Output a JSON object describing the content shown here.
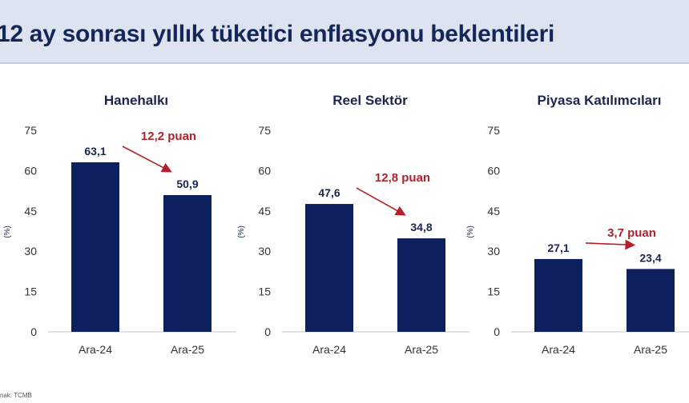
{
  "title": "12 ay sonrası yıllık tüketici enflasyonu beklentileri",
  "source": "nak: TCMB",
  "colors": {
    "bar": "#0d1f5c",
    "annotation": "#b3202a",
    "text": "#1a2550",
    "axis": "#595959"
  },
  "chart_data": [
    {
      "type": "bar",
      "title": "Hanehalkı",
      "ylabel": "(%)",
      "categories": [
        "Ara-24",
        "Ara-25"
      ],
      "values": [
        63.1,
        50.9
      ],
      "data_labels": [
        "63,1",
        "50,9"
      ],
      "ylim": [
        0,
        75
      ],
      "yticks": [
        "0",
        "15",
        "30",
        "45",
        "60",
        "75"
      ],
      "annotation": "12,2 puan",
      "grid": false
    },
    {
      "type": "bar",
      "title": "Reel Sektör",
      "ylabel": "(%)",
      "categories": [
        "Ara-24",
        "Ara-25"
      ],
      "values": [
        47.6,
        34.8
      ],
      "data_labels": [
        "47,6",
        "34,8"
      ],
      "ylim": [
        0,
        75
      ],
      "yticks": [
        "0",
        "15",
        "30",
        "45",
        "60",
        "75"
      ],
      "annotation": "12,8 puan",
      "grid": false
    },
    {
      "type": "bar",
      "title": "Piyasa Katılımcıları",
      "ylabel": "(%)",
      "categories": [
        "Ara-24",
        "Ara-25"
      ],
      "values": [
        27.1,
        23.4
      ],
      "data_labels": [
        "27,1",
        "23,4"
      ],
      "ylim": [
        0,
        75
      ],
      "yticks": [
        "0",
        "15",
        "30",
        "45",
        "60",
        "75"
      ],
      "annotation": "3,7 puan",
      "grid": false
    }
  ]
}
